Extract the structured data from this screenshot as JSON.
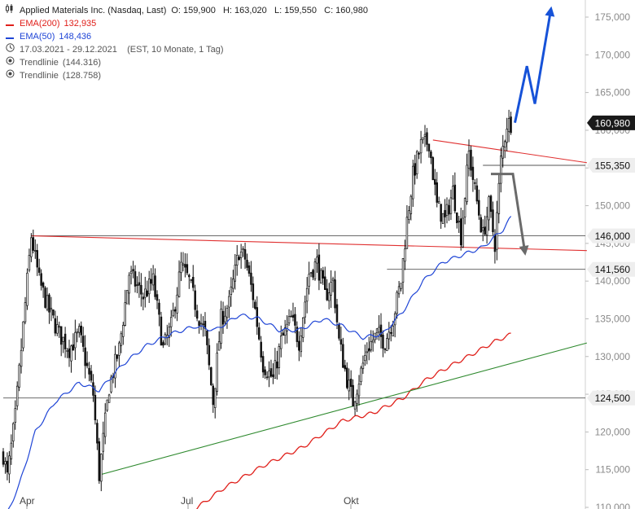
{
  "header": {
    "instrument": "Applied Materials Inc. (Nasdaq, Last)",
    "ohlc": "O: 159,900   H: 163,020   L: 159,550   C: 160,980",
    "ema200_label": "EMA(200)",
    "ema200_value": "132,935",
    "ema50_label": "EMA(50)",
    "ema50_value": "148,436",
    "period": "17.03.2021 - 29.12.2021    (EST, 10 Monate, 1 Tag)",
    "trend1_label": "Trendlinie",
    "trend1_value": "(144.316)",
    "trend2_label": "Trendlinie",
    "trend2_value": "(128.758)"
  },
  "colors": {
    "ema200": "#e0201b",
    "ema50": "#1f45d6",
    "candle": "#111111",
    "trend_green": "#2f8a2f",
    "trend_red": "#e03030",
    "projection_blue": "#1652d8",
    "projection_gray": "#6a6a6a",
    "tag_dark": "#1a1a1a",
    "tag_light": "#eeeeee"
  },
  "chart_data": {
    "type": "candlestick",
    "yaxis": {
      "min": 110000,
      "max": 175000,
      "ticks": [
        175000,
        170000,
        165000,
        160000,
        155000,
        150000,
        145000,
        140000,
        135000,
        130000,
        125000,
        120000,
        115000,
        110000
      ],
      "tick_labels": [
        "175,000",
        "170,000",
        "165,000",
        "160,000",
        "155,000",
        "150,000",
        "145,000",
        "140,000",
        "135,000",
        "130,000",
        "125,000",
        "120,000",
        "115,000",
        "110,000"
      ]
    },
    "xaxis": {
      "labels": [
        "Apr",
        "Jul",
        "Okt"
      ]
    },
    "price_tags": [
      {
        "label": "160,980",
        "value": 160980,
        "style": "dark"
      },
      {
        "label": "155,350",
        "value": 155350,
        "style": "light"
      },
      {
        "label": "146,000",
        "value": 146000,
        "style": "light"
      },
      {
        "label": "141,560",
        "value": 141560,
        "style": "light"
      },
      {
        "label": "124,500",
        "value": 124500,
        "style": "light"
      }
    ],
    "anchors": [
      {
        "t": 0,
        "p": 117000
      },
      {
        "t": 2,
        "p": 114000
      },
      {
        "t": 6,
        "p": 122000
      },
      {
        "t": 10,
        "p": 134000
      },
      {
        "t": 14,
        "p": 146000
      },
      {
        "t": 18,
        "p": 140000
      },
      {
        "t": 23,
        "p": 136000
      },
      {
        "t": 28,
        "p": 133000
      },
      {
        "t": 33,
        "p": 131000
      },
      {
        "t": 38,
        "p": 133000
      },
      {
        "t": 45,
        "p": 125000
      },
      {
        "t": 48,
        "p": 114300
      },
      {
        "t": 53,
        "p": 126000
      },
      {
        "t": 58,
        "p": 131000
      },
      {
        "t": 63,
        "p": 141000
      },
      {
        "t": 70,
        "p": 138000
      },
      {
        "t": 75,
        "p": 140000
      },
      {
        "t": 80,
        "p": 131000
      },
      {
        "t": 84,
        "p": 134000
      },
      {
        "t": 89,
        "p": 142000
      },
      {
        "t": 93,
        "p": 140000
      },
      {
        "t": 97,
        "p": 136000
      },
      {
        "t": 101,
        "p": 133000
      },
      {
        "t": 105,
        "p": 124000
      },
      {
        "t": 109,
        "p": 135000
      },
      {
        "t": 113,
        "p": 137000
      },
      {
        "t": 118,
        "p": 144000
      },
      {
        "t": 121,
        "p": 143000
      },
      {
        "t": 125,
        "p": 138000
      },
      {
        "t": 130,
        "p": 129000
      },
      {
        "t": 135,
        "p": 127000
      },
      {
        "t": 139,
        "p": 132000
      },
      {
        "t": 144,
        "p": 135000
      },
      {
        "t": 148,
        "p": 132000
      },
      {
        "t": 153,
        "p": 141000
      },
      {
        "t": 157,
        "p": 142500
      },
      {
        "t": 161,
        "p": 138000
      },
      {
        "t": 165,
        "p": 140000
      },
      {
        "t": 168,
        "p": 132000
      },
      {
        "t": 172,
        "p": 127000
      },
      {
        "t": 175,
        "p": 124000
      },
      {
        "t": 178,
        "p": 127000
      },
      {
        "t": 182,
        "p": 131000
      },
      {
        "t": 187,
        "p": 133000
      },
      {
        "t": 191,
        "p": 132000
      },
      {
        "t": 195,
        "p": 135000
      },
      {
        "t": 199,
        "p": 140000
      },
      {
        "t": 202,
        "p": 148000
      },
      {
        "t": 205,
        "p": 154000
      },
      {
        "t": 209,
        "p": 158000
      },
      {
        "t": 213,
        "p": 158500
      },
      {
        "t": 217,
        "p": 150000
      },
      {
        "t": 221,
        "p": 148000
      },
      {
        "t": 225,
        "p": 152000
      },
      {
        "t": 229,
        "p": 146000
      },
      {
        "t": 233,
        "p": 157000
      },
      {
        "t": 236,
        "p": 152000
      },
      {
        "t": 240,
        "p": 146000
      },
      {
        "t": 243,
        "p": 150000
      },
      {
        "t": 246,
        "p": 145000
      },
      {
        "t": 249,
        "p": 156000
      },
      {
        "t": 252,
        "p": 160900
      },
      {
        "t": 254,
        "p": 160980
      }
    ],
    "ema50": [
      {
        "t": 0,
        "p": 108000
      },
      {
        "t": 8,
        "p": 113000
      },
      {
        "t": 16,
        "p": 120000
      },
      {
        "t": 26,
        "p": 124000
      },
      {
        "t": 38,
        "p": 126500
      },
      {
        "t": 48,
        "p": 125500
      },
      {
        "t": 60,
        "p": 129000
      },
      {
        "t": 72,
        "p": 131500
      },
      {
        "t": 84,
        "p": 133000
      },
      {
        "t": 96,
        "p": 134000
      },
      {
        "t": 106,
        "p": 133500
      },
      {
        "t": 118,
        "p": 135500
      },
      {
        "t": 128,
        "p": 135000
      },
      {
        "t": 138,
        "p": 133500
      },
      {
        "t": 148,
        "p": 133500
      },
      {
        "t": 160,
        "p": 135000
      },
      {
        "t": 170,
        "p": 134000
      },
      {
        "t": 180,
        "p": 132500
      },
      {
        "t": 190,
        "p": 133000
      },
      {
        "t": 200,
        "p": 136000
      },
      {
        "t": 210,
        "p": 140000
      },
      {
        "t": 220,
        "p": 142500
      },
      {
        "t": 230,
        "p": 143500
      },
      {
        "t": 240,
        "p": 144500
      },
      {
        "t": 250,
        "p": 146800
      },
      {
        "t": 254,
        "p": 148436
      }
    ],
    "ema200": [
      {
        "t": 92,
        "p": 109000
      },
      {
        "t": 110,
        "p": 112500
      },
      {
        "t": 130,
        "p": 115500
      },
      {
        "t": 150,
        "p": 118000
      },
      {
        "t": 170,
        "p": 121500
      },
      {
        "t": 185,
        "p": 122500
      },
      {
        "t": 200,
        "p": 124500
      },
      {
        "t": 212,
        "p": 127000
      },
      {
        "t": 224,
        "p": 128800
      },
      {
        "t": 236,
        "p": 130500
      },
      {
        "t": 246,
        "p": 132000
      },
      {
        "t": 254,
        "p": 132935
      }
    ],
    "trendlines": [
      {
        "name": "green-support",
        "x1": 48,
        "y1": 114300,
        "x2": 292,
        "y2": 131800,
        "color": "trend_green"
      },
      {
        "name": "red-long",
        "x1": 14,
        "y1": 146000,
        "x2": 292,
        "y2": 144050,
        "color": "trend_red"
      },
      {
        "name": "red-upper",
        "x1": 215,
        "y1": 158700,
        "x2": 292,
        "y2": 155700,
        "color": "trend_red"
      }
    ],
    "hlines": [
      {
        "p": 146000,
        "x_from": 14
      },
      {
        "p": 141560,
        "x_from": 192
      },
      {
        "p": 155350,
        "x_from": 240
      },
      {
        "p": 124500,
        "x_from": 0
      }
    ],
    "projections": [
      {
        "name": "blue-up",
        "points": [
          {
            "t": 256,
            "p": 161000
          },
          {
            "t": 262,
            "p": 168500
          },
          {
            "t": 266,
            "p": 163500
          },
          {
            "t": 274,
            "p": 176000
          }
        ],
        "color": "projection_blue"
      },
      {
        "name": "gray-down",
        "points": [
          {
            "t": 244,
            "p": 154200
          },
          {
            "t": 255,
            "p": 154200
          },
          {
            "t": 261,
            "p": 143800
          }
        ],
        "color": "projection_gray"
      }
    ]
  }
}
